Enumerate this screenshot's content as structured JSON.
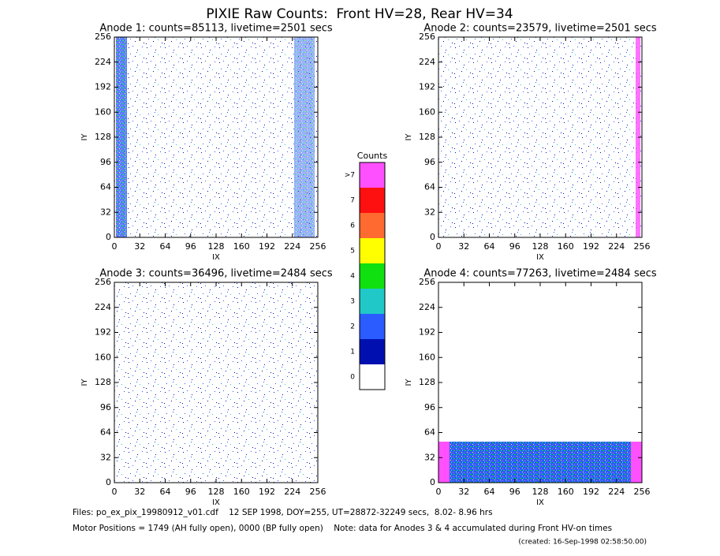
{
  "title": "PIXIE Raw Counts:  Front HV=28, Rear HV=34",
  "panels": [
    {
      "title": "Anode 1: counts=85113, livetime=2501 secs",
      "xlabel": "IX",
      "ylabel": "IY",
      "xlim": [
        0,
        256
      ],
      "ylim": [
        0,
        256
      ],
      "xticks": [
        0,
        32,
        64,
        96,
        128,
        160,
        192,
        224,
        256
      ],
      "yticks": [
        0,
        32,
        64,
        96,
        128,
        160,
        192,
        224,
        256
      ]
    },
    {
      "title": "Anode 2: counts=23579, livetime=2501 secs",
      "xlabel": "IX",
      "ylabel": "IY",
      "xlim": [
        0,
        256
      ],
      "ylim": [
        0,
        256
      ],
      "xticks": [
        0,
        32,
        64,
        96,
        128,
        160,
        192,
        224,
        256
      ],
      "yticks": [
        0,
        32,
        64,
        96,
        128,
        160,
        192,
        224,
        256
      ]
    },
    {
      "title": "Anode 3: counts=36496, livetime=2484 secs",
      "xlabel": "IX",
      "ylabel": "IY",
      "xlim": [
        0,
        256
      ],
      "ylim": [
        0,
        256
      ],
      "xticks": [
        0,
        32,
        64,
        96,
        128,
        160,
        192,
        224,
        256
      ],
      "yticks": [
        0,
        32,
        64,
        96,
        128,
        160,
        192,
        224,
        256
      ]
    },
    {
      "title": "Anode 4: counts=77263, livetime=2484 secs",
      "xlabel": "IX",
      "ylabel": "IY",
      "xlim": [
        0,
        256
      ],
      "ylim": [
        0,
        256
      ],
      "xticks": [
        0,
        32,
        64,
        96,
        128,
        160,
        192,
        224,
        256
      ],
      "yticks": [
        0,
        32,
        64,
        96,
        128,
        160,
        192,
        224,
        256
      ]
    }
  ],
  "colorbar": {
    "title": "Counts",
    "levels": [
      {
        "label": "0",
        "color": "#ffffff"
      },
      {
        "label": "1",
        "color": "#0010b0"
      },
      {
        "label": "2",
        "color": "#2a5cff"
      },
      {
        "label": "3",
        "color": "#20c8c8"
      },
      {
        "label": "4",
        "color": "#10e010"
      },
      {
        "label": "5",
        "color": "#ffff00"
      },
      {
        "label": "6",
        "color": "#ff6a30"
      },
      {
        "label": "7",
        "color": "#ff1010"
      },
      {
        "label": ">7",
        "color": "#ff50ff"
      }
    ]
  },
  "footer": {
    "files": "Files: po_ex_pix_19980912_v01.cdf    12 SEP 1998, DOY=255, UT=28872-32249 secs,  8.02- 8.96 hrs",
    "motor": "Motor Positions = 1749 (AH fully open), 0000 (BP fully open)    Note: data for Anodes 3 & 4 accumulated during Front HV-on times",
    "created": "(created: 16-Sep-1998 02:58:50.00)"
  }
}
